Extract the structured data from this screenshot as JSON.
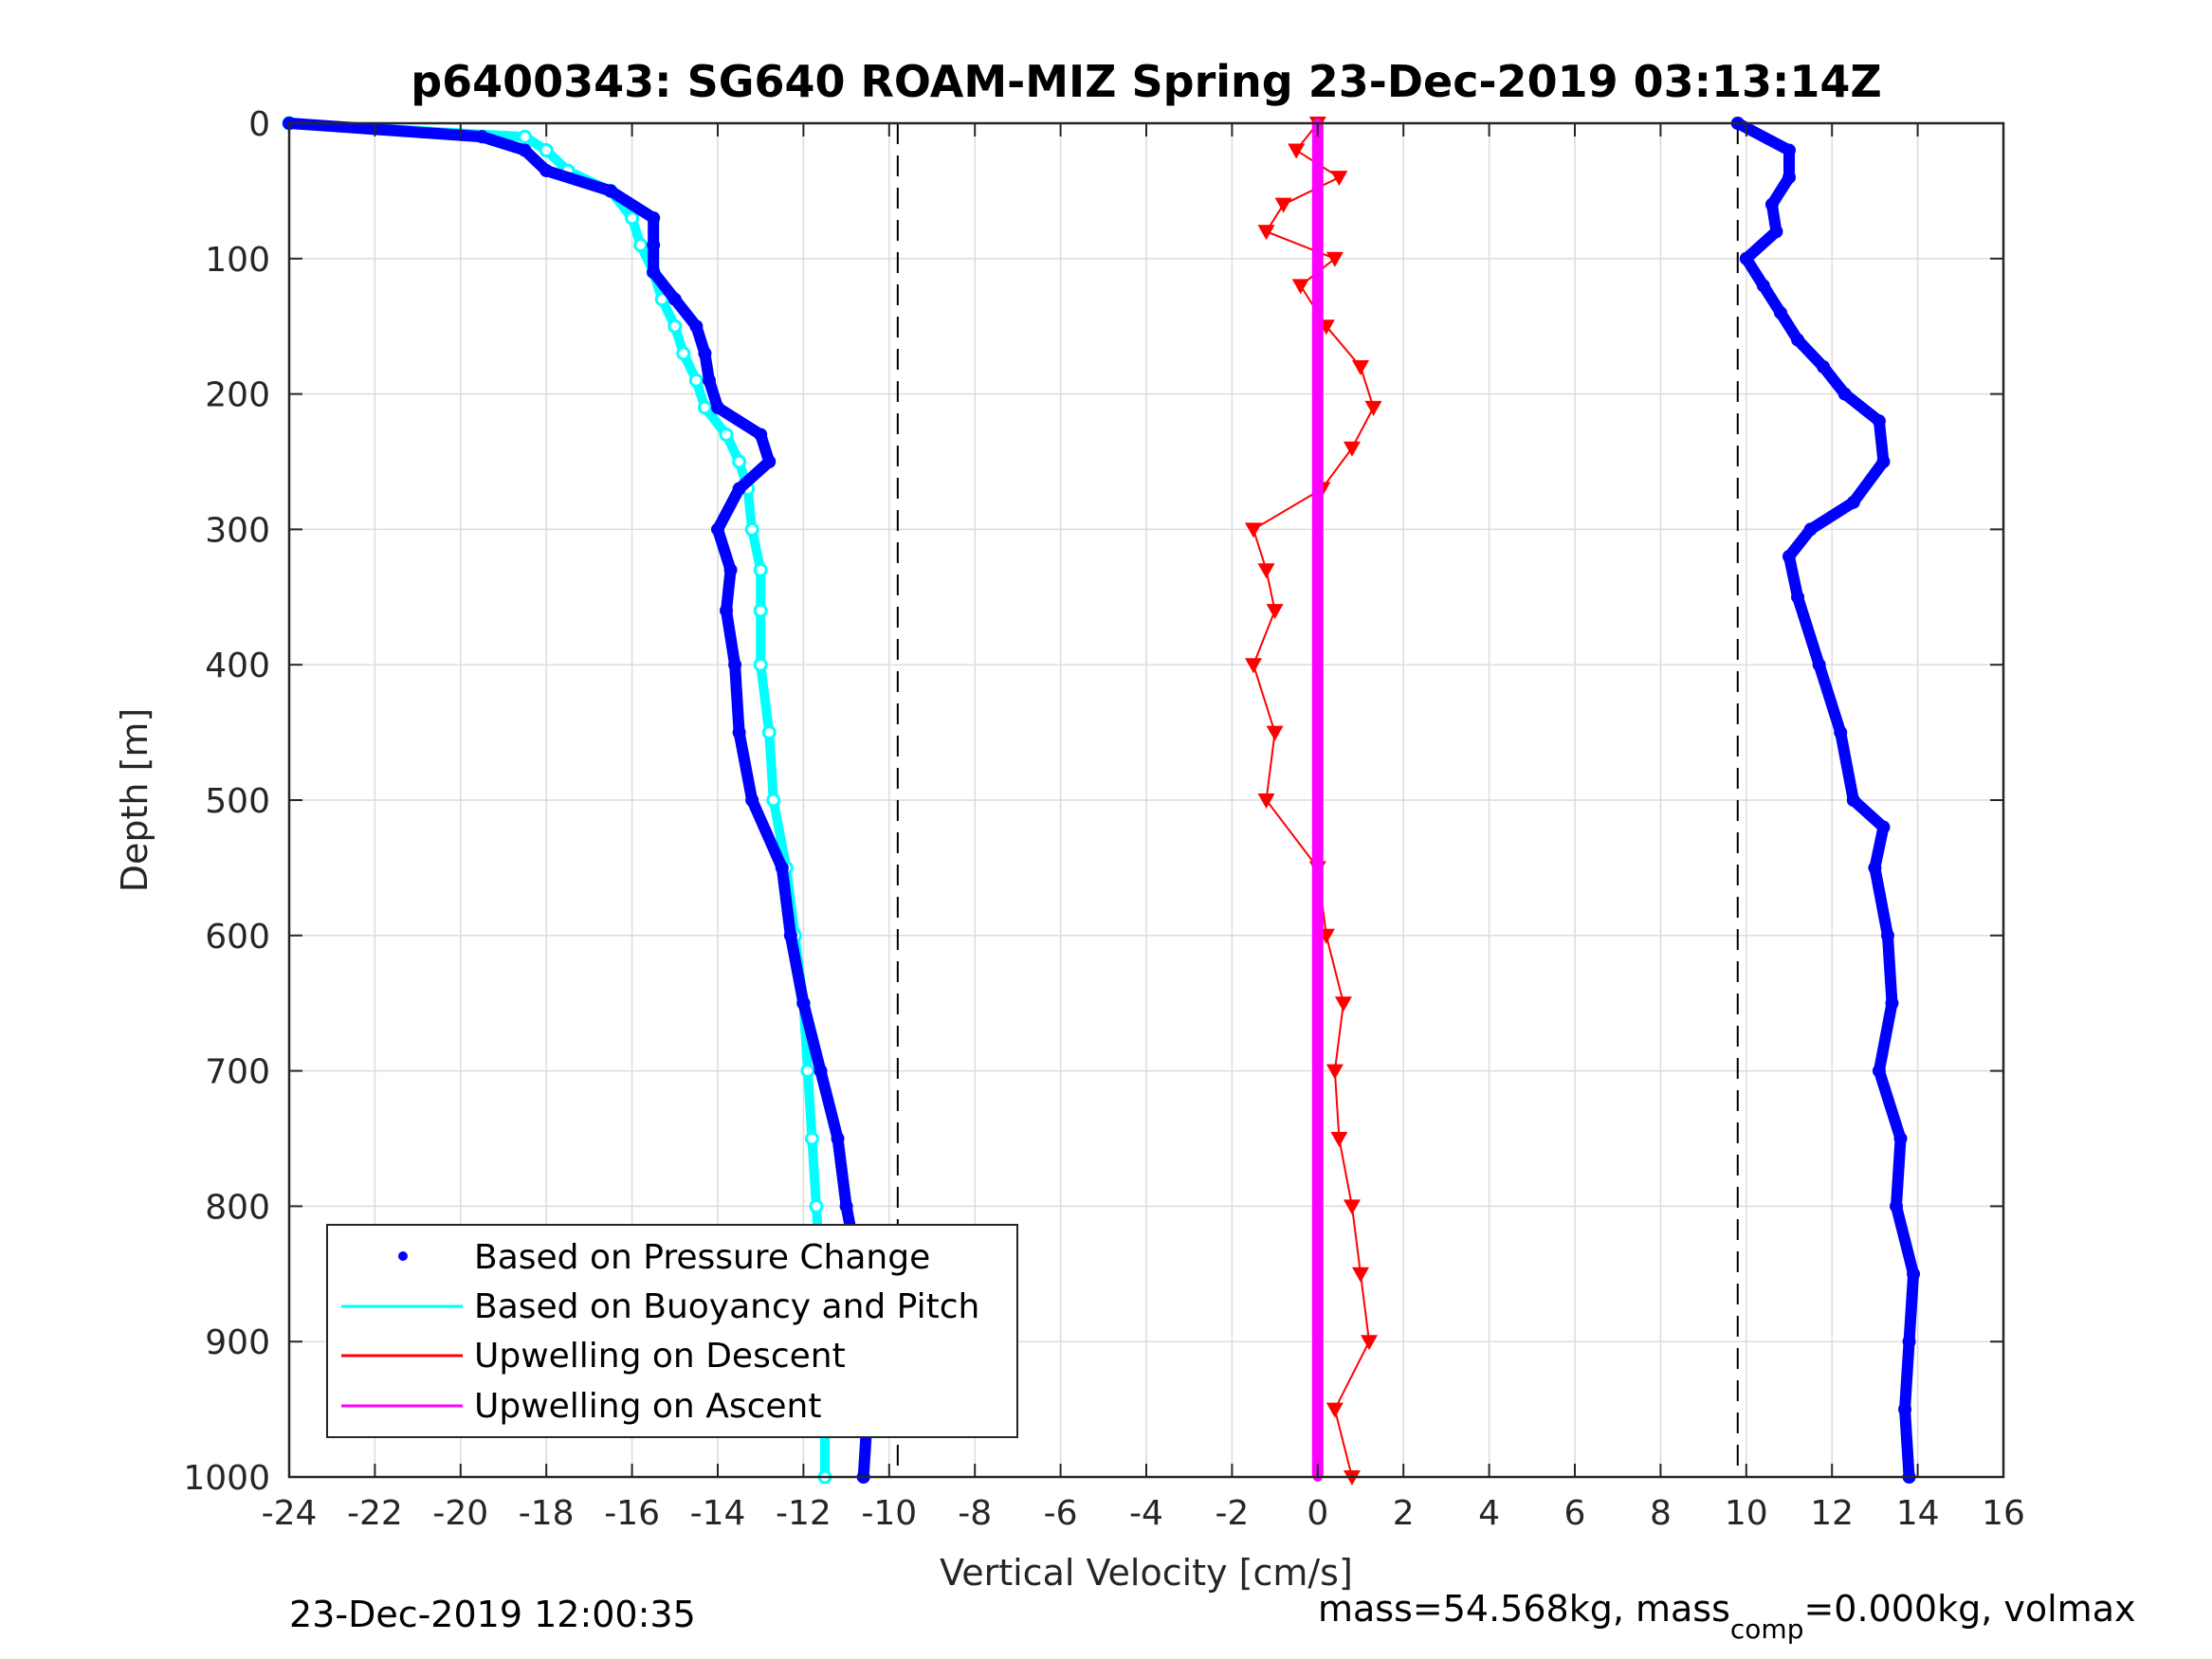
{
  "chart_data": {
    "type": "scatter",
    "title": "p6400343: SG640 ROAM-MIZ Spring 23-Dec-2019 03:13:14Z",
    "xlabel": "Vertical Velocity [cm/s]",
    "ylabel": "Depth [m]",
    "xlim": [
      -24,
      16
    ],
    "ylim": [
      0,
      1000
    ],
    "y_reversed": true,
    "grid": true,
    "legend_placement": "bottom-left",
    "xticks": [
      "-24",
      "-22",
      "-20",
      "-18",
      "-16",
      "-14",
      "-12",
      "-10",
      "-8",
      "-6",
      "-4",
      "-2",
      "0",
      "2",
      "4",
      "6",
      "8",
      "10",
      "12",
      "14",
      "16"
    ],
    "yticks": [
      "0",
      "100",
      "200",
      "300",
      "400",
      "500",
      "600",
      "700",
      "800",
      "900",
      "1000"
    ],
    "reference_lines_x": [
      -9.8,
      9.8
    ],
    "legend": [
      {
        "label": "Based on Pressure Change",
        "color": "#0000ff",
        "style": "dot"
      },
      {
        "label": "Based on Buoyancy and Pitch",
        "color": "#00ffff",
        "style": "line"
      },
      {
        "label": "Upwelling on Descent",
        "color": "#ff0000",
        "style": "line"
      },
      {
        "label": "Upwelling on Ascent",
        "color": "#ff00ff",
        "style": "line"
      }
    ],
    "series": [
      {
        "name": "Based on Pressure Change",
        "color": "#0000ff",
        "profile": "descent",
        "depth": [
          0,
          10,
          20,
          35,
          50,
          70,
          90,
          110,
          130,
          150,
          170,
          190,
          210,
          230,
          250,
          270,
          300,
          330,
          360,
          400,
          450,
          500,
          550,
          600,
          650,
          700,
          750,
          800,
          850,
          900,
          950,
          1000
        ],
        "velocity": [
          -24,
          -19.5,
          -18.5,
          -18,
          -16.5,
          -15.5,
          -15.5,
          -15.5,
          -15,
          -14.5,
          -14.3,
          -14.2,
          -14,
          -13,
          -12.8,
          -13.5,
          -14,
          -13.7,
          -13.8,
          -13.6,
          -13.5,
          -13.2,
          -12.5,
          -12.3,
          -12,
          -11.6,
          -11.2,
          -11,
          -10.7,
          -10.6,
          -10.5,
          -10.6
        ]
      },
      {
        "name": "Based on Buoyancy and Pitch",
        "color": "#00ffff",
        "profile": "descent",
        "depth": [
          0,
          10,
          20,
          35,
          50,
          70,
          90,
          110,
          130,
          150,
          170,
          190,
          210,
          230,
          250,
          270,
          300,
          330,
          360,
          400,
          450,
          500,
          550,
          600,
          650,
          700,
          750,
          800,
          850,
          900,
          950,
          1000
        ],
        "velocity": [
          -24,
          -18.5,
          -18,
          -17.5,
          -16.5,
          -16,
          -15.8,
          -15.5,
          -15.3,
          -15,
          -14.8,
          -14.5,
          -14.3,
          -13.8,
          -13.5,
          -13.3,
          -13.2,
          -13,
          -13,
          -13,
          -12.8,
          -12.7,
          -12.4,
          -12.2,
          -12,
          -11.9,
          -11.8,
          -11.7,
          -11.6,
          -11.5,
          -11.5,
          -11.5
        ]
      },
      {
        "name": "Based on Pressure Change",
        "color": "#0000ff",
        "profile": "ascent",
        "depth": [
          1000,
          950,
          900,
          850,
          800,
          750,
          700,
          650,
          600,
          550,
          520,
          500,
          450,
          400,
          350,
          320,
          300,
          280,
          250,
          220,
          200,
          180,
          160,
          140,
          120,
          100,
          80,
          60,
          40,
          20,
          0
        ],
        "velocity": [
          13.8,
          13.7,
          13.8,
          13.9,
          13.5,
          13.6,
          13.1,
          13.4,
          13.3,
          13,
          13.2,
          12.5,
          12.2,
          11.7,
          11.2,
          11,
          11.5,
          12.5,
          13.2,
          13.1,
          12.3,
          11.8,
          11.2,
          10.8,
          10.4,
          10,
          10.7,
          10.6,
          11,
          11,
          9.8
        ]
      },
      {
        "name": "Upwelling on Descent",
        "color": "#ff0000",
        "profile": "descent",
        "depth": [
          0,
          20,
          40,
          60,
          80,
          100,
          120,
          150,
          180,
          210,
          240,
          270,
          300,
          330,
          360,
          400,
          450,
          500,
          550,
          600,
          650,
          700,
          750,
          800,
          850,
          900,
          950,
          1000
        ],
        "velocity": [
          0,
          -0.5,
          0.5,
          -0.8,
          -1.2,
          0.4,
          -0.4,
          0.2,
          1.0,
          1.3,
          0.8,
          0.1,
          -1.5,
          -1.2,
          -1.0,
          -1.5,
          -1.0,
          -1.2,
          0.0,
          0.2,
          0.6,
          0.4,
          0.5,
          0.8,
          1.0,
          1.2,
          0.4,
          0.8
        ]
      },
      {
        "name": "Upwelling on Ascent",
        "color": "#ff00ff",
        "profile": "ascent",
        "depth": [
          0,
          1000
        ],
        "velocity": [
          0,
          0
        ]
      }
    ]
  },
  "footer": {
    "timestamp": "23-Dec-2019 12:00:35",
    "mass_text": "mass=54.568kg, mass",
    "mass_sub": "comp",
    "mass_tail": "=0.000kg, volmax"
  }
}
